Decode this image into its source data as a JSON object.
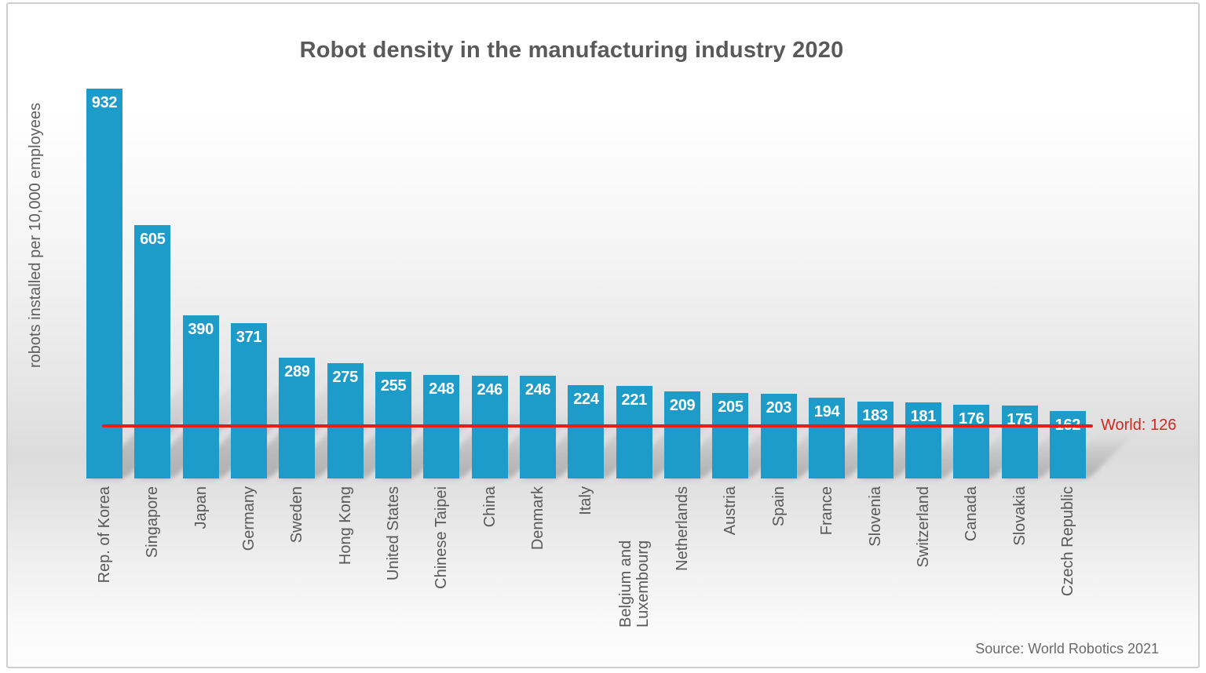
{
  "title": "Robot density in the manufacturing industry 2020",
  "y_axis_label": "robots installed per 10,000 employees",
  "source": "Source: World Robotics 2021",
  "world_line": {
    "label": "World: 126",
    "value": 126
  },
  "colors": {
    "bar": "#1d9bc9",
    "line": "#e81e14",
    "line_label": "#cf2a22",
    "title_text": "#595959",
    "axis_text": "#595959",
    "value_label": "#ffffff"
  },
  "chart_data": {
    "type": "bar",
    "title": "Robot density in the manufacturing industry 2020",
    "xlabel": "",
    "ylabel": "robots installed per 10,000 employees",
    "ylim": [
      0,
      1000
    ],
    "grid": false,
    "legend_position": "none",
    "categories": [
      "Rep. of Korea",
      "Singapore",
      "Japan",
      "Germany",
      "Sweden",
      "Hong Kong",
      "United States",
      "Chinese Taipei",
      "China",
      "Denmark",
      "Italy",
      "Belgium and Luxembourg",
      "Netherlands",
      "Austria",
      "Spain",
      "France",
      "Slovenia",
      "Switzerland",
      "Canada",
      "Slovakia",
      "Czech Republic"
    ],
    "values": [
      932,
      605,
      390,
      371,
      289,
      275,
      255,
      248,
      246,
      246,
      224,
      221,
      209,
      205,
      203,
      194,
      183,
      181,
      176,
      175,
      162
    ],
    "annotations": [
      {
        "type": "hline",
        "value": 126,
        "label": "World: 126",
        "color": "#e81e14"
      }
    ]
  }
}
